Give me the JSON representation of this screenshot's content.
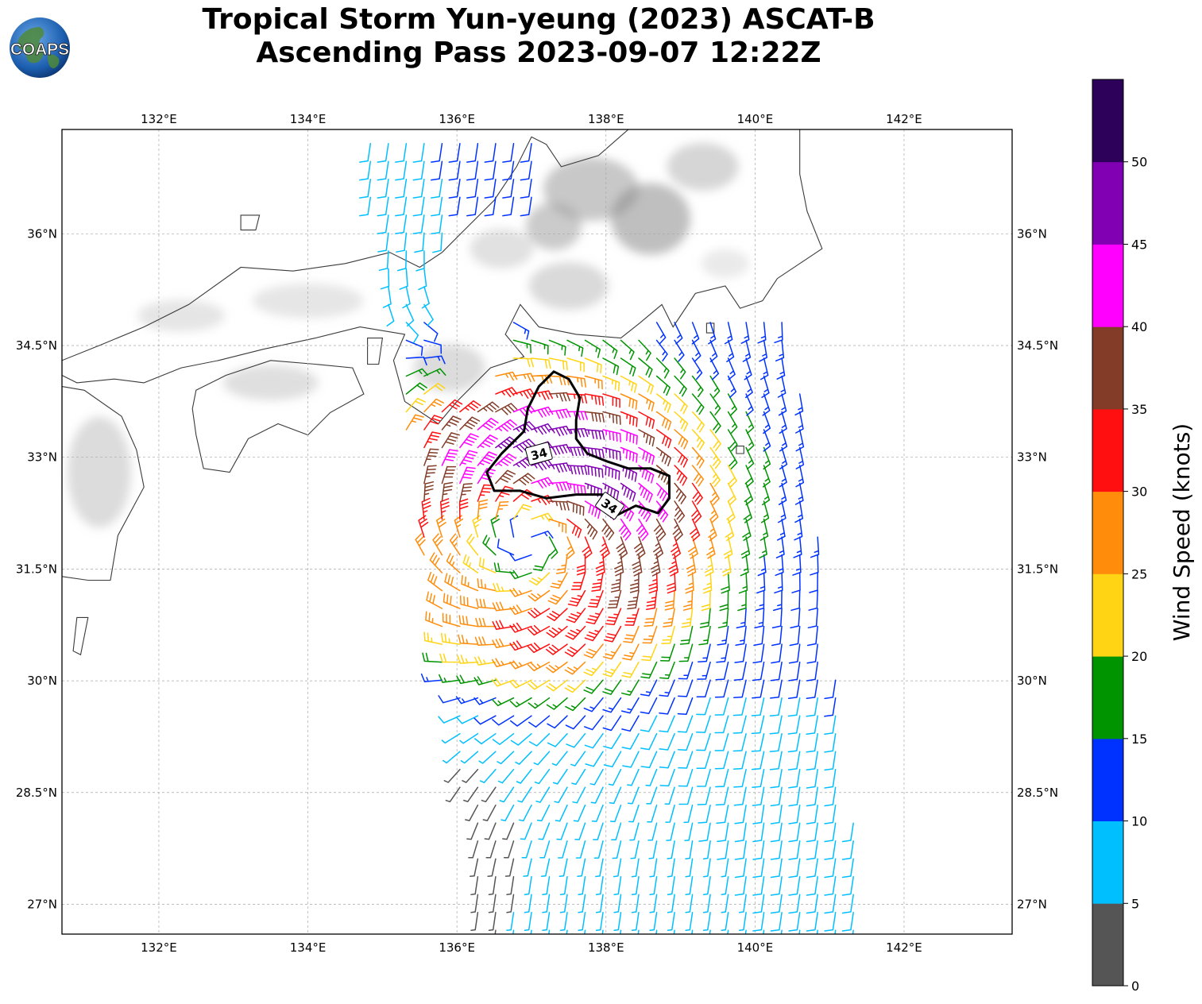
{
  "title": {
    "line1": "Tropical Storm Yun-yeung (2023) ASCAT-B",
    "line2": "Ascending Pass 2023-09-07 12:22Z"
  },
  "logo": {
    "text": "COAPS",
    "icon": "globe-logo-icon"
  },
  "map": {
    "lon_range": [
      130.7,
      143.45
    ],
    "lat_range": [
      26.6,
      37.4
    ],
    "lon_ticks": [
      {
        "value": 132,
        "label": "132°E"
      },
      {
        "value": 134,
        "label": "134°E"
      },
      {
        "value": 136,
        "label": "136°E"
      },
      {
        "value": 138,
        "label": "138°E"
      },
      {
        "value": 140,
        "label": "140°E"
      },
      {
        "value": 142,
        "label": "142°E"
      }
    ],
    "lat_ticks": [
      {
        "value": 36,
        "label": "36°N"
      },
      {
        "value": 34.5,
        "label": "34.5°N"
      },
      {
        "value": 33,
        "label": "33°N"
      },
      {
        "value": 31.5,
        "label": "31.5°N"
      },
      {
        "value": 30,
        "label": "30°N"
      },
      {
        "value": 28.5,
        "label": "28.5°N"
      },
      {
        "value": 27,
        "label": "27°N"
      }
    ],
    "gridlines": true,
    "storm_center": {
      "lon": 137.0,
      "lat": 31.9
    },
    "contour_label": "34"
  },
  "colorbar": {
    "label": "Wind Speed (knots)",
    "bins": [
      {
        "min": 0,
        "max": 5,
        "color": "#555555"
      },
      {
        "min": 5,
        "max": 10,
        "color": "#00bfff"
      },
      {
        "min": 10,
        "max": 15,
        "color": "#0032ff"
      },
      {
        "min": 15,
        "max": 20,
        "color": "#009400"
      },
      {
        "min": 20,
        "max": 25,
        "color": "#ffd414"
      },
      {
        "min": 25,
        "max": 30,
        "color": "#ff8c0a"
      },
      {
        "min": 30,
        "max": 35,
        "color": "#ff0f0f"
      },
      {
        "min": 35,
        "max": 40,
        "color": "#823c28"
      },
      {
        "min": 40,
        "max": 45,
        "color": "#ff00ff"
      },
      {
        "min": 45,
        "max": 50,
        "color": "#8200b4"
      },
      {
        "min": 50,
        "max": 55,
        "color": "#2d005a"
      }
    ],
    "ticks": [
      "0",
      "5",
      "10",
      "15",
      "20",
      "25",
      "30",
      "35",
      "40",
      "45",
      "50"
    ]
  }
}
